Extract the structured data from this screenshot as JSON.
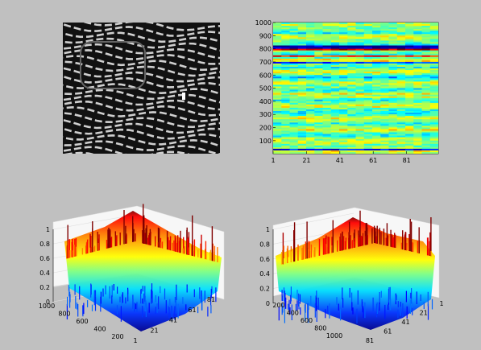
{
  "figure": {
    "background": "#c0c0c0"
  },
  "chart_data": [
    {
      "type": "image",
      "description_id": "zebra-stripe-photo",
      "colors": {
        "dark": "#111111",
        "stripe": "#cfcfcf"
      }
    },
    {
      "type": "heatmap",
      "colormap": "jet",
      "x_ticks": [
        "1",
        "21",
        "41",
        "61",
        "81"
      ],
      "y_ticks": [
        "100",
        "200",
        "300",
        "400",
        "500",
        "600",
        "700",
        "800",
        "900",
        "1000"
      ],
      "xlim": [
        1,
        100
      ],
      "ylim": [
        1,
        1000
      ]
    },
    {
      "type": "surface",
      "colormap": "jet",
      "view": "front-left",
      "z_ticks": [
        "0",
        "0.2",
        "0.4",
        "0.6",
        "0.8",
        "1"
      ],
      "left_axis_ticks": [
        "1000",
        "800",
        "600",
        "400",
        "200"
      ],
      "right_axis_ticks": [
        "1",
        "21",
        "41",
        "61",
        "81"
      ],
      "zlim": [
        0,
        1
      ]
    },
    {
      "type": "surface",
      "colormap": "jet",
      "view": "back-right",
      "z_ticks": [
        "0",
        "0.2",
        "0.4",
        "0.6",
        "0.8",
        "1"
      ],
      "left_axis_ticks": [
        "200",
        "400",
        "600",
        "800",
        "1000"
      ],
      "right_axis_ticks": [
        "81",
        "61",
        "41",
        "21",
        "1"
      ],
      "zlim": [
        0,
        1
      ]
    }
  ]
}
